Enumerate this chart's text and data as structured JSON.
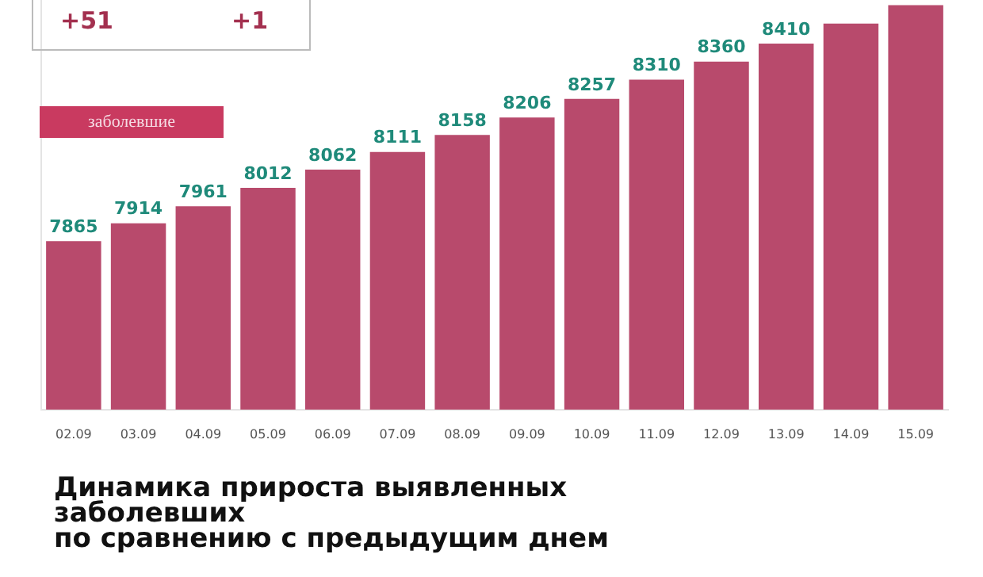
{
  "chart_data": {
    "type": "bar",
    "title": "Динамика прироста выявленных заболевших\nпо сравнению с предыдущим днем",
    "categories": [
      "02.09",
      "03.09",
      "04.09",
      "05.09",
      "06.09",
      "07.09",
      "08.09",
      "09.09",
      "10.09",
      "11.09",
      "12.09",
      "13.09",
      "14.09",
      "15.09"
    ],
    "series": [
      {
        "color": "#b84a6c",
        "values": [
          7865,
          7914,
          7961,
          8012,
          8062,
          8111,
          8158,
          8206,
          8257,
          8310,
          8360,
          8410,
          8465,
          8516
        ],
        "value_labels": [
          "7865",
          "7914",
          "7961",
          "8012",
          "8062",
          "8111",
          "8158",
          "8206",
          "8257",
          "8310",
          "8360",
          "8410",
          null,
          null
        ]
      }
    ],
    "ylim": [
      7400,
      8530
    ],
    "tick_labels": "x",
    "grid": false,
    "legend": false,
    "annotations": [
      "+51",
      "+1",
      "заболевшие"
    ]
  }
}
